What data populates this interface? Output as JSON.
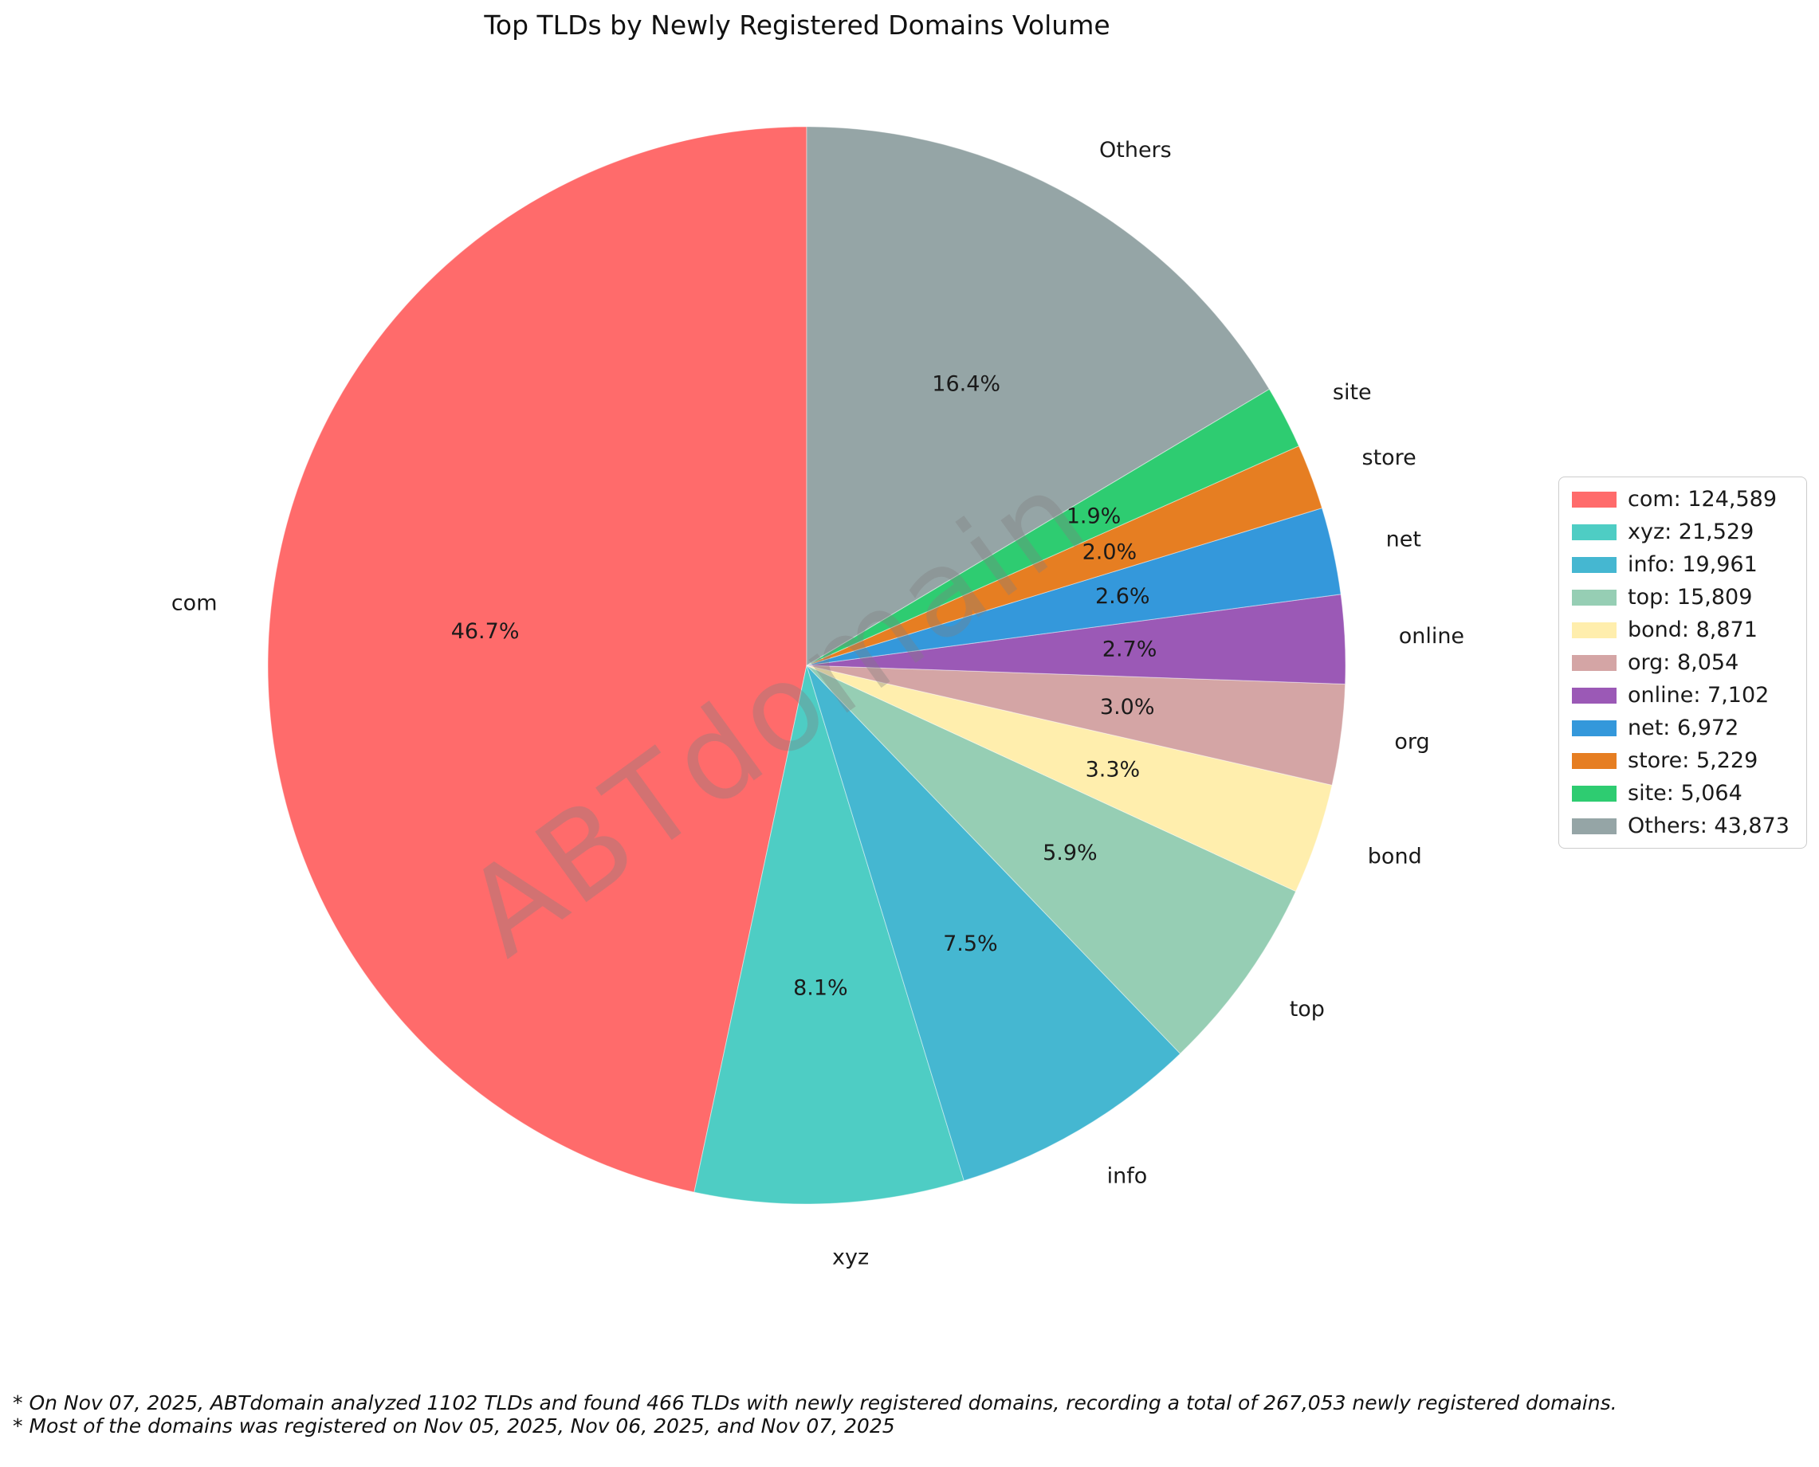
{
  "title": "Top TLDs by Newly Registered Domains Volume",
  "watermark": "ABTdomain",
  "footnotes": {
    "line1": "* On Nov 07, 2025, ABTdomain analyzed 1102 TLDs and found 466 TLDs with newly registered domains, recording a total of 267,053 newly registered domains.",
    "line2": "* Most of the domains was registered on Nov 05, 2025, Nov 06, 2025, and Nov 07, 2025"
  },
  "chart_data": {
    "type": "pie",
    "title": "Top TLDs by Newly Registered Domains Volume",
    "labels": [
      "com",
      "xyz",
      "info",
      "top",
      "bond",
      "org",
      "online",
      "net",
      "store",
      "site",
      "Others"
    ],
    "values": [
      124589,
      21529,
      19961,
      15809,
      8871,
      8054,
      7102,
      6972,
      5229,
      5064,
      43873
    ],
    "pct_labels": [
      "46.7%",
      "8.1%",
      "7.5%",
      "5.9%",
      "3.3%",
      "3.0%",
      "2.7%",
      "2.6%",
      "2.0%",
      "1.9%",
      "16.4%"
    ],
    "colors": [
      "#FF6B6B",
      "#4ECDC4",
      "#45B7D1",
      "#96CEB4",
      "#FFEEAD",
      "#D4A5A5",
      "#9B59B6",
      "#3498DB",
      "#E67E22",
      "#2ECC71",
      "#95A5A6"
    ],
    "total": 267053,
    "start_angle": 90,
    "direction": "counterclockwise",
    "grid": false,
    "legend_position": "center right",
    "legend_entries": [
      "com: 124,589",
      "xyz: 21,529",
      "info: 19,961",
      "top: 15,809",
      "bond: 8,871",
      "org: 8,054",
      "online: 7,102",
      "net: 6,972",
      "store: 5,229",
      "site: 5,064",
      "Others: 43,873"
    ]
  }
}
